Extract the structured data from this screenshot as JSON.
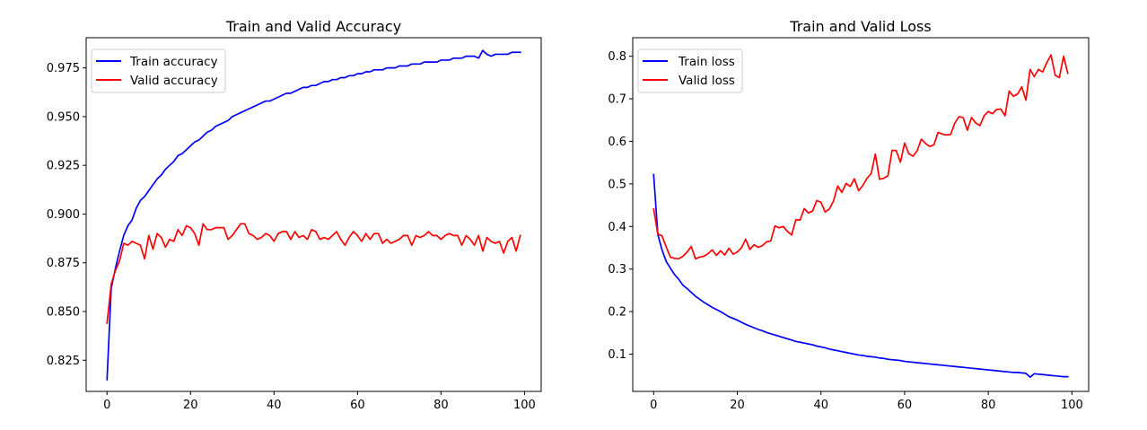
{
  "chart_data": [
    {
      "type": "line",
      "title": "Train and Valid Accuracy",
      "xlabel": "",
      "ylabel": "",
      "xlim": [
        -5,
        104
      ],
      "ylim": [
        0.809,
        0.9905
      ],
      "xticks": [
        0,
        20,
        40,
        60,
        80,
        100
      ],
      "xtick_labels": [
        "0",
        "20",
        "40",
        "60",
        "80",
        "100"
      ],
      "yticks": [
        0.825,
        0.85,
        0.875,
        0.9,
        0.925,
        0.95,
        0.975
      ],
      "ytick_labels": [
        "0.825",
        "0.850",
        "0.875",
        "0.900",
        "0.925",
        "0.950",
        "0.975"
      ],
      "legend_position": "top-left",
      "series": [
        {
          "name": "Train accuracy",
          "color": "#0000ff",
          "values": [
            0.815,
            0.862,
            0.872,
            0.881,
            0.889,
            0.894,
            0.897,
            0.903,
            0.907,
            0.909,
            0.912,
            0.915,
            0.918,
            0.92,
            0.923,
            0.925,
            0.927,
            0.93,
            0.931,
            0.933,
            0.935,
            0.937,
            0.938,
            0.94,
            0.942,
            0.943,
            0.945,
            0.946,
            0.947,
            0.948,
            0.95,
            0.951,
            0.952,
            0.953,
            0.954,
            0.955,
            0.956,
            0.957,
            0.958,
            0.958,
            0.959,
            0.96,
            0.961,
            0.962,
            0.962,
            0.963,
            0.964,
            0.965,
            0.965,
            0.966,
            0.966,
            0.967,
            0.968,
            0.968,
            0.969,
            0.969,
            0.97,
            0.97,
            0.971,
            0.971,
            0.972,
            0.972,
            0.973,
            0.973,
            0.974,
            0.974,
            0.974,
            0.975,
            0.975,
            0.975,
            0.976,
            0.976,
            0.976,
            0.977,
            0.977,
            0.977,
            0.978,
            0.978,
            0.978,
            0.978,
            0.979,
            0.979,
            0.979,
            0.98,
            0.98,
            0.98,
            0.981,
            0.981,
            0.981,
            0.98,
            0.984,
            0.982,
            0.981,
            0.982,
            0.982,
            0.982,
            0.982,
            0.983,
            0.983,
            0.983
          ]
        },
        {
          "name": "Valid accuracy",
          "color": "#ff0000",
          "values": [
            0.844,
            0.864,
            0.871,
            0.876,
            0.885,
            0.884,
            0.886,
            0.885,
            0.884,
            0.877,
            0.889,
            0.882,
            0.89,
            0.888,
            0.883,
            0.887,
            0.886,
            0.892,
            0.889,
            0.894,
            0.893,
            0.89,
            0.884,
            0.895,
            0.892,
            0.892,
            0.893,
            0.893,
            0.893,
            0.887,
            0.889,
            0.892,
            0.895,
            0.895,
            0.89,
            0.889,
            0.887,
            0.888,
            0.89,
            0.889,
            0.886,
            0.89,
            0.891,
            0.891,
            0.887,
            0.891,
            0.888,
            0.889,
            0.887,
            0.892,
            0.891,
            0.887,
            0.888,
            0.887,
            0.889,
            0.891,
            0.887,
            0.884,
            0.888,
            0.891,
            0.889,
            0.886,
            0.89,
            0.887,
            0.89,
            0.89,
            0.885,
            0.887,
            0.885,
            0.886,
            0.887,
            0.889,
            0.889,
            0.884,
            0.889,
            0.888,
            0.889,
            0.891,
            0.889,
            0.889,
            0.887,
            0.889,
            0.89,
            0.889,
            0.889,
            0.884,
            0.889,
            0.887,
            0.884,
            0.889,
            0.881,
            0.888,
            0.886,
            0.885,
            0.886,
            0.88,
            0.886,
            0.888,
            0.881,
            0.889
          ]
        }
      ]
    },
    {
      "type": "line",
      "title": "Train and Valid Loss",
      "xlabel": "",
      "ylabel": "",
      "xlim": [
        -5,
        104
      ],
      "ylim": [
        0.0125,
        0.8435
      ],
      "xticks": [
        0,
        20,
        40,
        60,
        80,
        100
      ],
      "xtick_labels": [
        "0",
        "20",
        "40",
        "60",
        "80",
        "100"
      ],
      "yticks": [
        0.1,
        0.2,
        0.3,
        0.4,
        0.5,
        0.6,
        0.7,
        0.8
      ],
      "ytick_labels": [
        "0.1",
        "0.2",
        "0.3",
        "0.4",
        "0.5",
        "0.6",
        "0.7",
        "0.8"
      ],
      "legend_position": "top-left",
      "series": [
        {
          "name": "Train loss",
          "color": "#0000ff",
          "values": [
            0.522,
            0.381,
            0.345,
            0.318,
            0.302,
            0.287,
            0.276,
            0.262,
            0.254,
            0.245,
            0.236,
            0.229,
            0.222,
            0.216,
            0.21,
            0.205,
            0.2,
            0.194,
            0.188,
            0.184,
            0.18,
            0.175,
            0.17,
            0.166,
            0.162,
            0.158,
            0.155,
            0.151,
            0.148,
            0.145,
            0.142,
            0.139,
            0.136,
            0.133,
            0.13,
            0.128,
            0.126,
            0.124,
            0.122,
            0.119,
            0.117,
            0.115,
            0.112,
            0.11,
            0.108,
            0.106,
            0.104,
            0.102,
            0.1,
            0.098,
            0.097,
            0.095,
            0.094,
            0.093,
            0.091,
            0.09,
            0.088,
            0.087,
            0.086,
            0.085,
            0.083,
            0.082,
            0.081,
            0.08,
            0.079,
            0.078,
            0.077,
            0.076,
            0.075,
            0.074,
            0.073,
            0.072,
            0.071,
            0.07,
            0.069,
            0.068,
            0.067,
            0.066,
            0.065,
            0.064,
            0.063,
            0.062,
            0.061,
            0.06,
            0.059,
            0.058,
            0.057,
            0.057,
            0.056,
            0.055,
            0.046,
            0.054,
            0.053,
            0.052,
            0.051,
            0.05,
            0.049,
            0.048,
            0.047,
            0.047
          ]
        },
        {
          "name": "Valid loss",
          "color": "#ff0000",
          "values": [
            0.441,
            0.382,
            0.378,
            0.352,
            0.328,
            0.325,
            0.324,
            0.33,
            0.34,
            0.353,
            0.324,
            0.328,
            0.33,
            0.336,
            0.345,
            0.332,
            0.343,
            0.333,
            0.349,
            0.335,
            0.34,
            0.35,
            0.37,
            0.346,
            0.357,
            0.351,
            0.355,
            0.364,
            0.366,
            0.401,
            0.397,
            0.4,
            0.388,
            0.38,
            0.416,
            0.415,
            0.442,
            0.432,
            0.436,
            0.461,
            0.457,
            0.434,
            0.441,
            0.46,
            0.495,
            0.48,
            0.501,
            0.494,
            0.512,
            0.484,
            0.496,
            0.513,
            0.524,
            0.57,
            0.511,
            0.513,
            0.519,
            0.579,
            0.578,
            0.551,
            0.596,
            0.571,
            0.565,
            0.578,
            0.605,
            0.595,
            0.588,
            0.592,
            0.621,
            0.617,
            0.615,
            0.616,
            0.643,
            0.658,
            0.656,
            0.626,
            0.656,
            0.643,
            0.637,
            0.66,
            0.67,
            0.665,
            0.675,
            0.676,
            0.66,
            0.718,
            0.706,
            0.711,
            0.728,
            0.697,
            0.769,
            0.752,
            0.769,
            0.763,
            0.785,
            0.803,
            0.755,
            0.75,
            0.8,
            0.76
          ]
        }
      ]
    }
  ]
}
